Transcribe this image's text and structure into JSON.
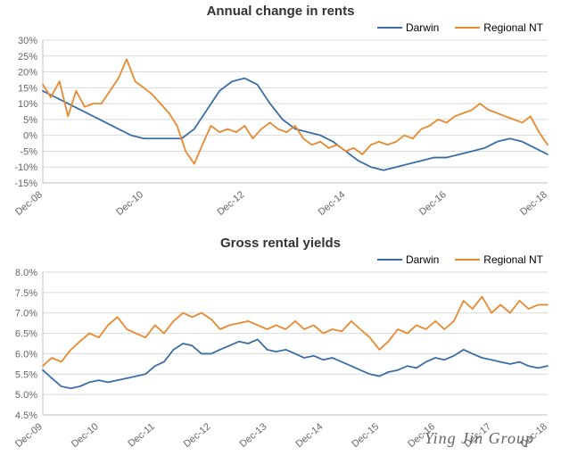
{
  "watermark": "Ying Jin Group",
  "chart1": {
    "type": "line",
    "title": "Annual change in rents",
    "title_fontsize": 15,
    "legend": [
      {
        "label": "Darwin",
        "color": "#3a6ea5"
      },
      {
        "label": "Regional NT",
        "color": "#e8892f"
      }
    ],
    "y": {
      "min": -15,
      "max": 30,
      "step": 5,
      "suffix": "%"
    },
    "x": {
      "ticks": [
        "Dec-08",
        "Dec-10",
        "Dec-12",
        "Dec-14",
        "Dec-16",
        "Dec-18"
      ],
      "min": 2008.92,
      "max": 2018.92,
      "step": 2
    },
    "grid_color": "#d9d9d9",
    "background_color": "#ffffff",
    "line_width": 1.8,
    "series": {
      "Darwin": {
        "color": "#3a6ea5",
        "points": [
          [
            2008.92,
            14
          ],
          [
            2009.17,
            12
          ],
          [
            2009.42,
            10
          ],
          [
            2009.67,
            8
          ],
          [
            2009.92,
            6
          ],
          [
            2010.17,
            4
          ],
          [
            2010.42,
            2
          ],
          [
            2010.67,
            0
          ],
          [
            2010.92,
            -1
          ],
          [
            2011.17,
            -1
          ],
          [
            2011.42,
            -1
          ],
          [
            2011.67,
            -1
          ],
          [
            2011.92,
            2
          ],
          [
            2012.17,
            8
          ],
          [
            2012.42,
            14
          ],
          [
            2012.67,
            17
          ],
          [
            2012.92,
            18
          ],
          [
            2013.17,
            16
          ],
          [
            2013.42,
            10
          ],
          [
            2013.67,
            5
          ],
          [
            2013.92,
            2
          ],
          [
            2014.17,
            1
          ],
          [
            2014.42,
            0
          ],
          [
            2014.67,
            -2
          ],
          [
            2014.92,
            -5
          ],
          [
            2015.17,
            -8
          ],
          [
            2015.42,
            -10
          ],
          [
            2015.67,
            -11
          ],
          [
            2015.92,
            -10
          ],
          [
            2016.17,
            -9
          ],
          [
            2016.42,
            -8
          ],
          [
            2016.67,
            -7
          ],
          [
            2016.92,
            -7
          ],
          [
            2017.17,
            -6
          ],
          [
            2017.42,
            -5
          ],
          [
            2017.67,
            -4
          ],
          [
            2017.92,
            -2
          ],
          [
            2018.17,
            -1
          ],
          [
            2018.42,
            -2
          ],
          [
            2018.67,
            -4
          ],
          [
            2018.92,
            -6
          ]
        ]
      },
      "Regional NT": {
        "color": "#e8892f",
        "points": [
          [
            2008.92,
            16
          ],
          [
            2009.08,
            12
          ],
          [
            2009.25,
            17
          ],
          [
            2009.42,
            6
          ],
          [
            2009.58,
            14
          ],
          [
            2009.75,
            9
          ],
          [
            2009.92,
            10
          ],
          [
            2010.08,
            10
          ],
          [
            2010.25,
            14
          ],
          [
            2010.42,
            18
          ],
          [
            2010.58,
            24
          ],
          [
            2010.75,
            17
          ],
          [
            2010.92,
            15
          ],
          [
            2011.08,
            13
          ],
          [
            2011.25,
            10
          ],
          [
            2011.42,
            7
          ],
          [
            2011.58,
            3
          ],
          [
            2011.75,
            -5
          ],
          [
            2011.92,
            -9
          ],
          [
            2012.08,
            -3
          ],
          [
            2012.25,
            3
          ],
          [
            2012.42,
            1
          ],
          [
            2012.58,
            2
          ],
          [
            2012.75,
            1
          ],
          [
            2012.92,
            3
          ],
          [
            2013.08,
            -1
          ],
          [
            2013.25,
            2
          ],
          [
            2013.42,
            4
          ],
          [
            2013.58,
            2
          ],
          [
            2013.75,
            1
          ],
          [
            2013.92,
            3
          ],
          [
            2014.08,
            -1
          ],
          [
            2014.25,
            -3
          ],
          [
            2014.42,
            -2
          ],
          [
            2014.58,
            -4
          ],
          [
            2014.75,
            -3
          ],
          [
            2014.92,
            -5
          ],
          [
            2015.08,
            -4
          ],
          [
            2015.25,
            -6
          ],
          [
            2015.42,
            -3
          ],
          [
            2015.58,
            -2
          ],
          [
            2015.75,
            -3
          ],
          [
            2015.92,
            -2
          ],
          [
            2016.08,
            0
          ],
          [
            2016.25,
            -1
          ],
          [
            2016.42,
            2
          ],
          [
            2016.58,
            3
          ],
          [
            2016.75,
            5
          ],
          [
            2016.92,
            4
          ],
          [
            2017.08,
            6
          ],
          [
            2017.25,
            7
          ],
          [
            2017.42,
            8
          ],
          [
            2017.58,
            10
          ],
          [
            2017.75,
            8
          ],
          [
            2017.92,
            7
          ],
          [
            2018.08,
            6
          ],
          [
            2018.25,
            5
          ],
          [
            2018.42,
            4
          ],
          [
            2018.58,
            6
          ],
          [
            2018.75,
            1
          ],
          [
            2018.92,
            -3
          ]
        ]
      }
    }
  },
  "chart2": {
    "type": "line",
    "title": "Gross rental yields",
    "title_fontsize": 15,
    "legend": [
      {
        "label": "Darwin",
        "color": "#3a6ea5"
      },
      {
        "label": "Regional NT",
        "color": "#e8892f"
      }
    ],
    "y": {
      "min": 4.5,
      "max": 8.0,
      "step": 0.5,
      "suffix": "%",
      "decimals": 1
    },
    "x": {
      "ticks": [
        "Dec-09",
        "Dec-10",
        "Dec-11",
        "Dec-12",
        "Dec-13",
        "Dec-14",
        "Dec-15",
        "Dec-16",
        "Dec-17",
        "Dec-18"
      ],
      "min": 2009.92,
      "max": 2018.92,
      "step": 1
    },
    "grid_color": "#d9d9d9",
    "background_color": "#ffffff",
    "line_width": 1.8,
    "series": {
      "Darwin": {
        "color": "#3a6ea5",
        "points": [
          [
            2009.92,
            5.6
          ],
          [
            2010.08,
            5.4
          ],
          [
            2010.25,
            5.2
          ],
          [
            2010.42,
            5.15
          ],
          [
            2010.58,
            5.2
          ],
          [
            2010.75,
            5.3
          ],
          [
            2010.92,
            5.35
          ],
          [
            2011.08,
            5.3
          ],
          [
            2011.25,
            5.35
          ],
          [
            2011.42,
            5.4
          ],
          [
            2011.58,
            5.45
          ],
          [
            2011.75,
            5.5
          ],
          [
            2011.92,
            5.7
          ],
          [
            2012.08,
            5.8
          ],
          [
            2012.25,
            6.1
          ],
          [
            2012.42,
            6.25
          ],
          [
            2012.58,
            6.2
          ],
          [
            2012.75,
            6.0
          ],
          [
            2012.92,
            6.0
          ],
          [
            2013.08,
            6.1
          ],
          [
            2013.25,
            6.2
          ],
          [
            2013.42,
            6.3
          ],
          [
            2013.58,
            6.25
          ],
          [
            2013.75,
            6.35
          ],
          [
            2013.92,
            6.1
          ],
          [
            2014.08,
            6.05
          ],
          [
            2014.25,
            6.1
          ],
          [
            2014.42,
            6.0
          ],
          [
            2014.58,
            5.9
          ],
          [
            2014.75,
            5.95
          ],
          [
            2014.92,
            5.85
          ],
          [
            2015.08,
            5.9
          ],
          [
            2015.25,
            5.8
          ],
          [
            2015.42,
            5.7
          ],
          [
            2015.58,
            5.6
          ],
          [
            2015.75,
            5.5
          ],
          [
            2015.92,
            5.45
          ],
          [
            2016.08,
            5.55
          ],
          [
            2016.25,
            5.6
          ],
          [
            2016.42,
            5.7
          ],
          [
            2016.58,
            5.65
          ],
          [
            2016.75,
            5.8
          ],
          [
            2016.92,
            5.9
          ],
          [
            2017.08,
            5.85
          ],
          [
            2017.25,
            5.95
          ],
          [
            2017.42,
            6.1
          ],
          [
            2017.58,
            6.0
          ],
          [
            2017.75,
            5.9
          ],
          [
            2017.92,
            5.85
          ],
          [
            2018.08,
            5.8
          ],
          [
            2018.25,
            5.75
          ],
          [
            2018.42,
            5.8
          ],
          [
            2018.58,
            5.7
          ],
          [
            2018.75,
            5.65
          ],
          [
            2018.92,
            5.7
          ]
        ]
      },
      "Regional NT": {
        "color": "#e8892f",
        "points": [
          [
            2009.92,
            5.7
          ],
          [
            2010.08,
            5.9
          ],
          [
            2010.25,
            5.8
          ],
          [
            2010.42,
            6.1
          ],
          [
            2010.58,
            6.3
          ],
          [
            2010.75,
            6.5
          ],
          [
            2010.92,
            6.4
          ],
          [
            2011.08,
            6.7
          ],
          [
            2011.25,
            6.9
          ],
          [
            2011.42,
            6.6
          ],
          [
            2011.58,
            6.5
          ],
          [
            2011.75,
            6.4
          ],
          [
            2011.92,
            6.7
          ],
          [
            2012.08,
            6.5
          ],
          [
            2012.25,
            6.8
          ],
          [
            2012.42,
            7.0
          ],
          [
            2012.58,
            6.9
          ],
          [
            2012.75,
            7.0
          ],
          [
            2012.92,
            6.85
          ],
          [
            2013.08,
            6.6
          ],
          [
            2013.25,
            6.7
          ],
          [
            2013.42,
            6.75
          ],
          [
            2013.58,
            6.8
          ],
          [
            2013.75,
            6.7
          ],
          [
            2013.92,
            6.6
          ],
          [
            2014.08,
            6.7
          ],
          [
            2014.25,
            6.6
          ],
          [
            2014.42,
            6.8
          ],
          [
            2014.58,
            6.6
          ],
          [
            2014.75,
            6.7
          ],
          [
            2014.92,
            6.5
          ],
          [
            2015.08,
            6.6
          ],
          [
            2015.25,
            6.55
          ],
          [
            2015.42,
            6.8
          ],
          [
            2015.58,
            6.6
          ],
          [
            2015.75,
            6.4
          ],
          [
            2015.92,
            6.1
          ],
          [
            2016.08,
            6.3
          ],
          [
            2016.25,
            6.6
          ],
          [
            2016.42,
            6.5
          ],
          [
            2016.58,
            6.7
          ],
          [
            2016.75,
            6.6
          ],
          [
            2016.92,
            6.8
          ],
          [
            2017.08,
            6.6
          ],
          [
            2017.25,
            6.8
          ],
          [
            2017.42,
            7.3
          ],
          [
            2017.58,
            7.1
          ],
          [
            2017.75,
            7.4
          ],
          [
            2017.92,
            7.0
          ],
          [
            2018.08,
            7.2
          ],
          [
            2018.25,
            7.0
          ],
          [
            2018.42,
            7.3
          ],
          [
            2018.58,
            7.1
          ],
          [
            2018.75,
            7.2
          ],
          [
            2018.92,
            7.2
          ]
        ]
      }
    }
  }
}
